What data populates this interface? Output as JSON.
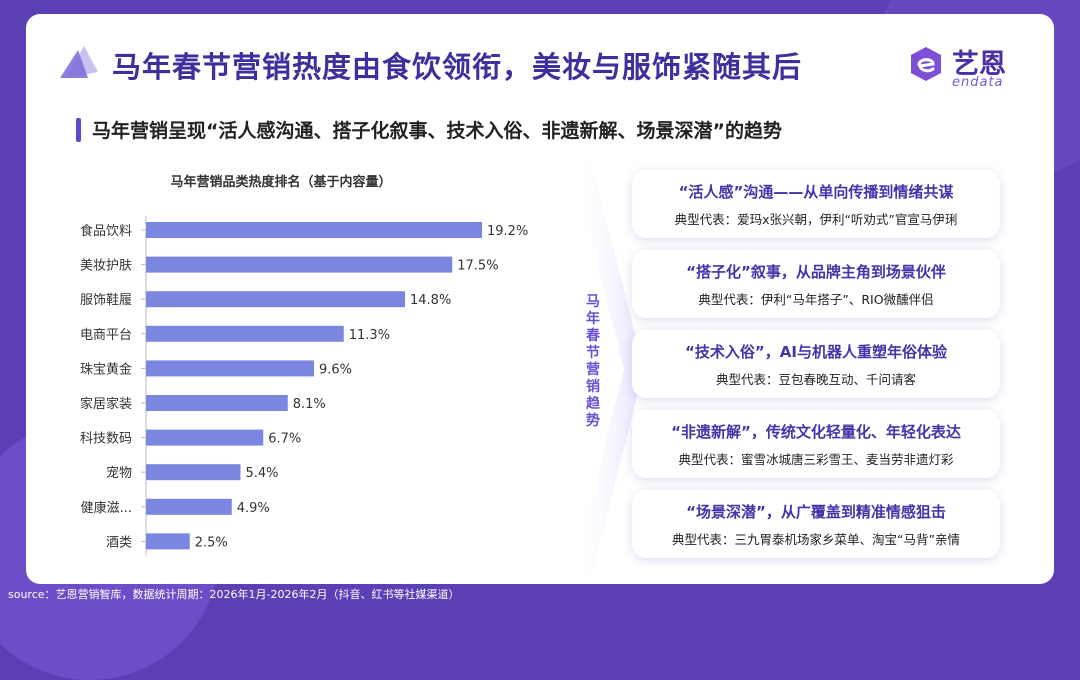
{
  "title": "马年春节营销热度由食饮领衔，美妆与服饰紧随其后",
  "subtitle": "马年营销呈现“活人感沟通、搭子化叙事、技术入俗、非遗新解、场景深潜”的趋势",
  "logo": {
    "cn": "艺恩",
    "en": "endata"
  },
  "colors": {
    "bar": "#7b86e0",
    "title": "#3d2f9c",
    "accent": "#6c4fd4",
    "background": "#5b3fb5"
  },
  "chart_data": {
    "type": "bar",
    "orientation": "horizontal",
    "title": "马年营销品类热度排名（基于内容量）",
    "categories": [
      "食品饮料",
      "美妆护肤",
      "服饰鞋履",
      "电商平台",
      "珠宝黄金",
      "家居家装",
      "科技数码",
      "宠物",
      "健康滋...",
      "酒类"
    ],
    "values": [
      19.2,
      17.5,
      14.8,
      11.3,
      9.6,
      8.1,
      6.7,
      5.4,
      4.9,
      2.5
    ],
    "value_labels": [
      "19.2%",
      "17.5%",
      "14.8%",
      "11.3%",
      "9.6%",
      "8.1%",
      "6.7%",
      "5.4%",
      "4.9%",
      "2.5%"
    ],
    "unit": "%",
    "xlim": [
      0,
      20
    ],
    "grid": false,
    "legend": "none"
  },
  "side_label": "马年春节营销趋势",
  "trends": [
    {
      "title": "“活人感”沟通——从单向传播到情绪共谋",
      "example": "典型代表：爱玛x张兴朝，伊利“听劝式”官宣马伊琍"
    },
    {
      "title": "“搭子化”叙事，从品牌主角到场景伙伴",
      "example": "典型代表：伊利“马年搭子”、RIO微醺伴侣"
    },
    {
      "title": "“技术入俗”，AI与机器人重塑年俗体验",
      "example": "典型代表：豆包春晚互动、千问请客"
    },
    {
      "title": "“非遗新解”，传统文化轻量化、年轻化表达",
      "example": "典型代表：蜜雪冰城唐三彩雪王、麦当劳非遗灯彩"
    },
    {
      "title": "“场景深潜”，从广覆盖到精准情感狙击",
      "example": "典型代表：三九胃泰机场家乡菜单、淘宝“马背”亲情"
    }
  ],
  "footer": "source：艺恩营销智库，数据统计周期：2026年1月-2026年2月（抖音、红书等社媒渠道）"
}
